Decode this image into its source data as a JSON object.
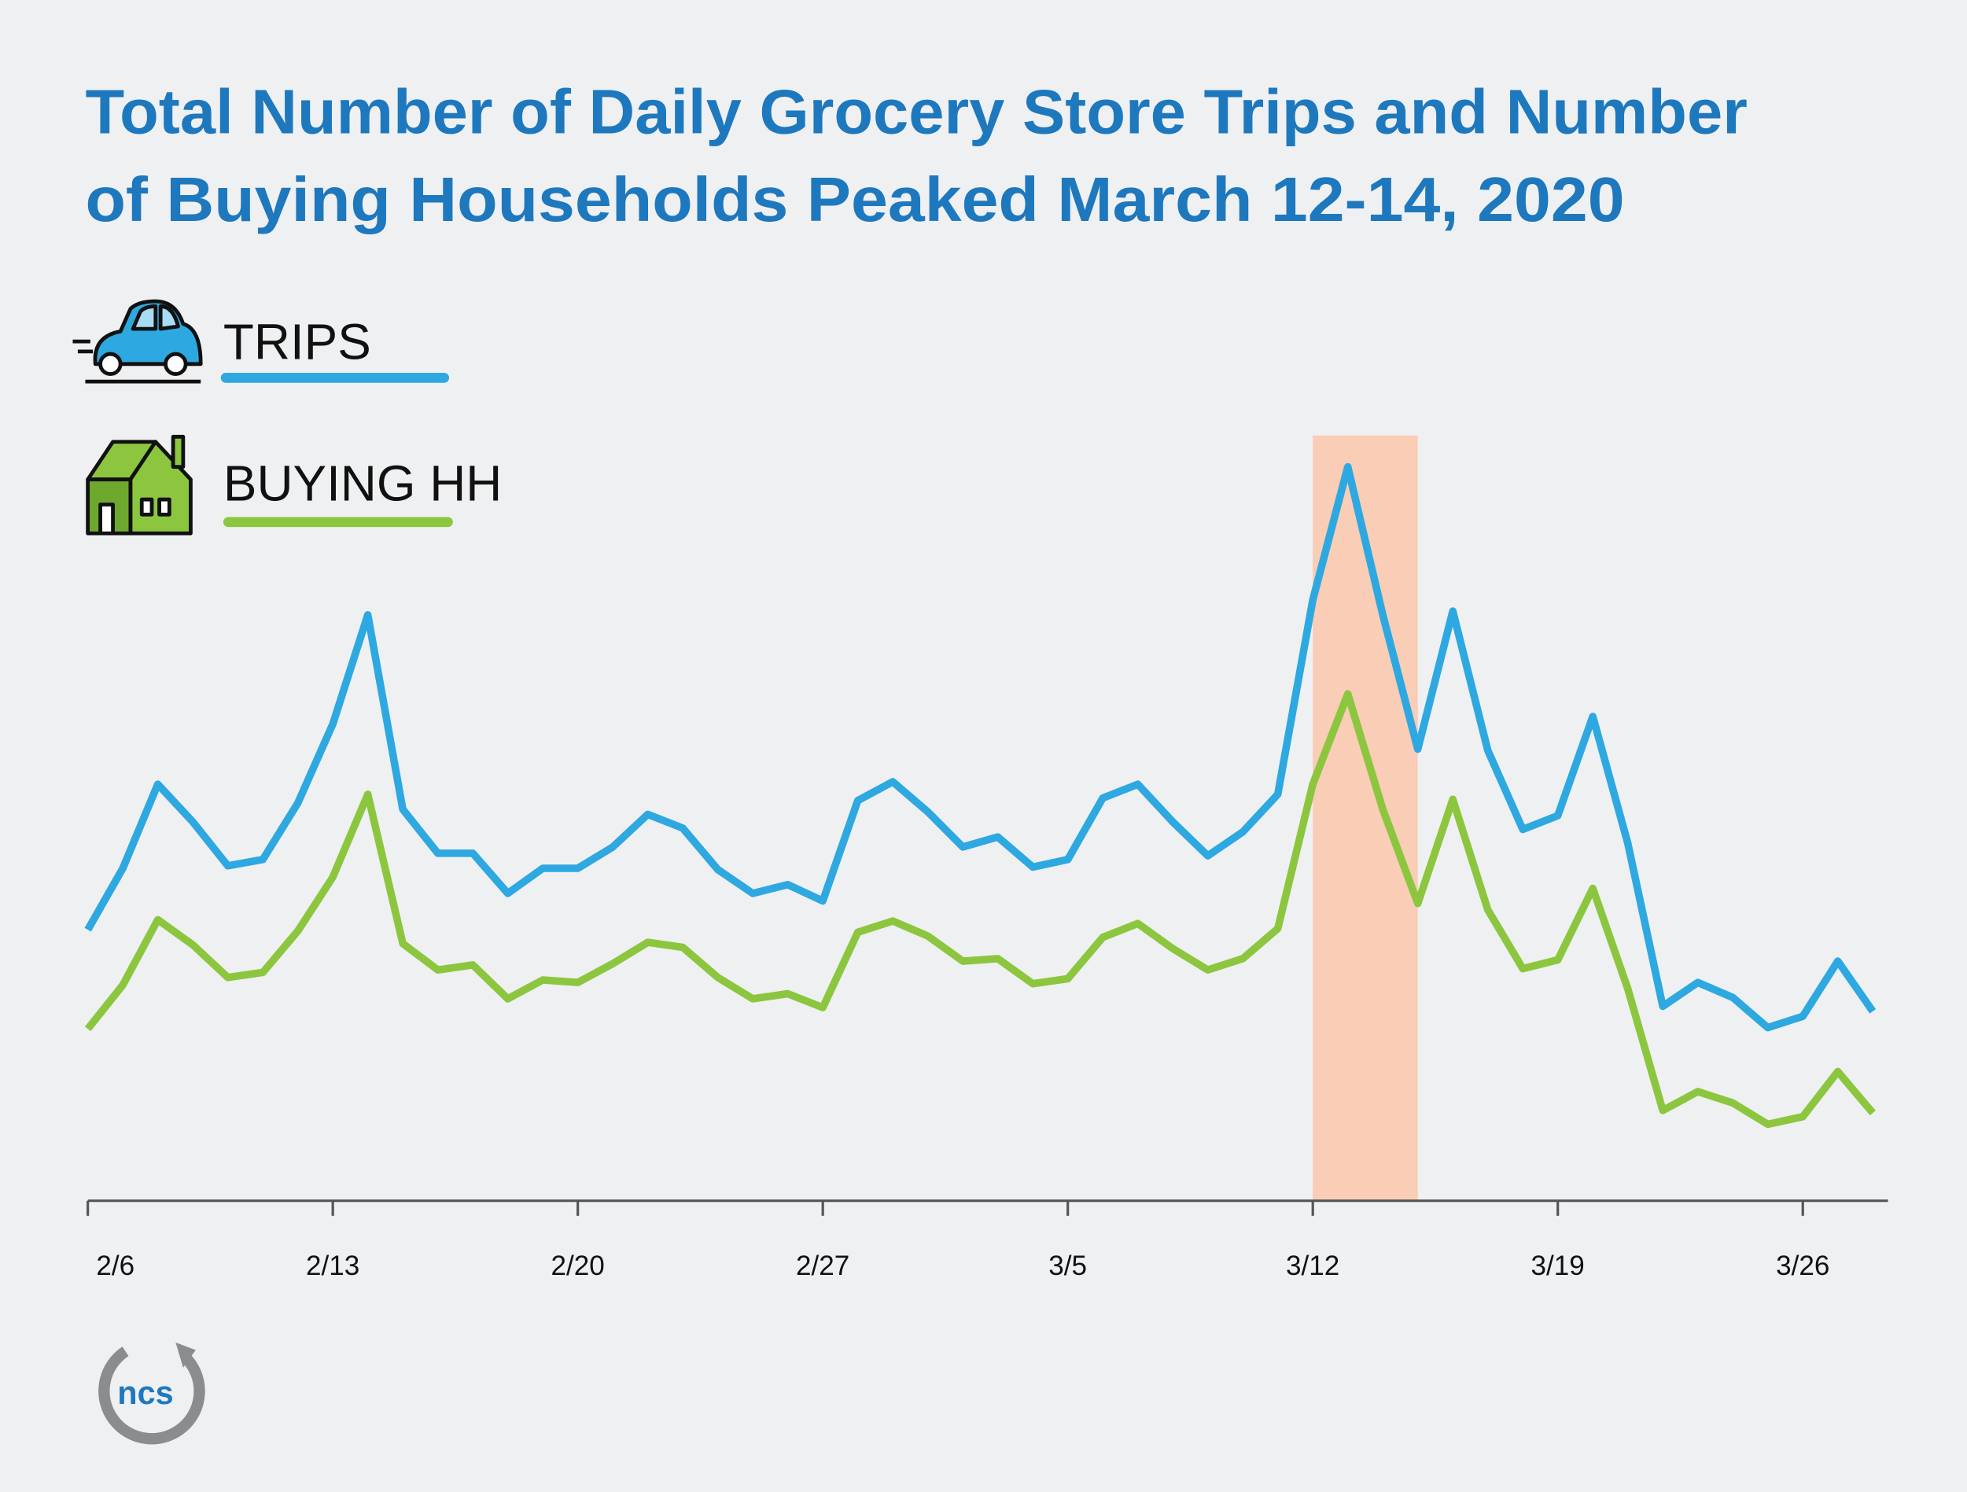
{
  "chart_data": {
    "type": "line",
    "title": [
      "Total Number of Daily Grocery Store Trips and Number",
      "of Buying Households Peaked March 12-14, 2020"
    ],
    "categories": [
      "2/6",
      null,
      null,
      null,
      null,
      null,
      null,
      "2/13",
      null,
      null,
      null,
      null,
      null,
      null,
      "2/20",
      null,
      null,
      null,
      null,
      null,
      null,
      "2/27",
      null,
      null,
      null,
      null,
      null,
      null,
      "3/5",
      null,
      null,
      null,
      null,
      null,
      null,
      "3/12",
      null,
      null,
      null,
      null,
      null,
      null,
      "3/19",
      null,
      null,
      null,
      null,
      null,
      null,
      "3/26",
      null,
      null
    ],
    "series": [
      {
        "name": "TRIPS",
        "color": "#2ea8e0",
        "values": [
          216,
          265,
          332,
          302,
          267,
          272,
          317,
          380,
          467,
          312,
          277,
          277,
          245,
          265,
          265,
          282,
          308,
          297,
          264,
          245,
          252,
          239,
          319,
          334,
          310,
          282,
          290,
          266,
          272,
          321,
          332,
          302,
          275,
          294,
          324,
          479,
          585,
          467,
          360,
          470,
          359,
          296,
          307,
          386,
          285,
          155,
          174,
          162,
          138,
          147,
          191,
          151
        ]
      },
      {
        "name": "BUYING HH",
        "color": "#8cc63f",
        "values": [
          137,
          172,
          224,
          204,
          178,
          182,
          215,
          258,
          324,
          205,
          184,
          188,
          161,
          176,
          174,
          189,
          206,
          202,
          178,
          161,
          165,
          154,
          214,
          223,
          211,
          191,
          193,
          173,
          177,
          210,
          221,
          201,
          184,
          193,
          217,
          332,
          404,
          312,
          237,
          320,
          232,
          185,
          192,
          249,
          169,
          72,
          87,
          78,
          61,
          67,
          103,
          70
        ]
      }
    ],
    "ylim": [
      0,
      610
    ],
    "highlight": {
      "from": 35,
      "to": 38,
      "color": "#f9cdb6"
    },
    "logo": "ncs"
  }
}
